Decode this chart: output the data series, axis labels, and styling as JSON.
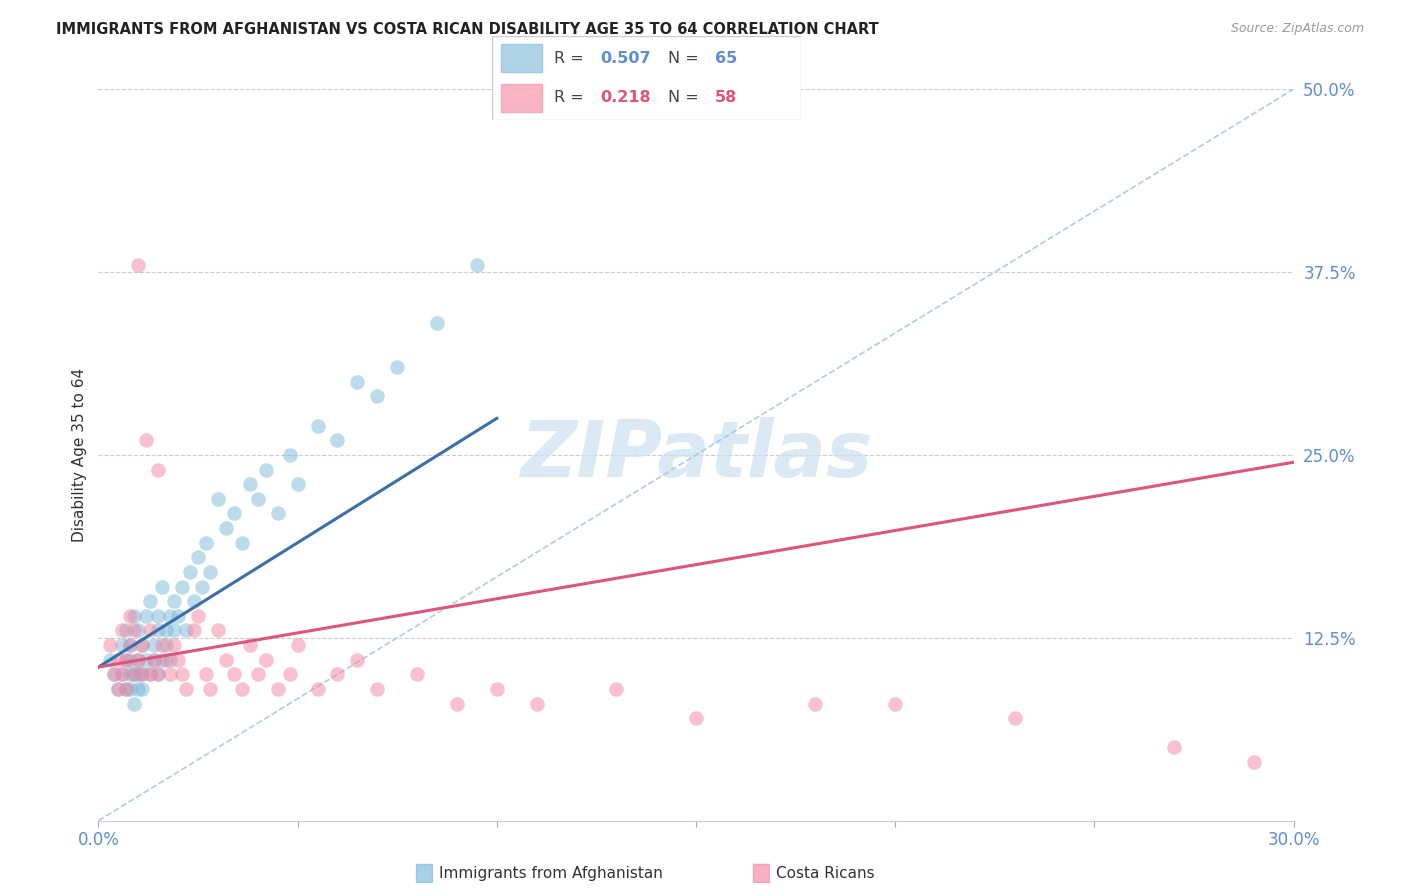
{
  "title": "IMMIGRANTS FROM AFGHANISTAN VS COSTA RICAN DISABILITY AGE 35 TO 64 CORRELATION CHART",
  "source": "Source: ZipAtlas.com",
  "ylabel": "Disability Age 35 to 64",
  "xlim": [
    0.0,
    0.3
  ],
  "ylim": [
    0.0,
    0.5
  ],
  "xticks": [
    0.0,
    0.05,
    0.1,
    0.15,
    0.2,
    0.25,
    0.3
  ],
  "yticks_right": [
    0.0,
    0.125,
    0.25,
    0.375,
    0.5
  ],
  "ytick_labels_right": [
    "",
    "12.5%",
    "25.0%",
    "37.5%",
    "50.0%"
  ],
  "blue_color": "#7ab8d9",
  "pink_color": "#f585a0",
  "blue_line_color": "#3a6fac",
  "pink_line_color": "#e05577",
  "axis_label_color": "#5b8dd9",
  "watermark_color": "#cce0f0",
  "blue_scatter_x": [
    0.003,
    0.004,
    0.005,
    0.006,
    0.006,
    0.007,
    0.007,
    0.007,
    0.008,
    0.008,
    0.008,
    0.008,
    0.009,
    0.009,
    0.009,
    0.01,
    0.01,
    0.01,
    0.01,
    0.011,
    0.011,
    0.011,
    0.012,
    0.012,
    0.013,
    0.013,
    0.014,
    0.014,
    0.015,
    0.015,
    0.015,
    0.016,
    0.016,
    0.017,
    0.017,
    0.018,
    0.018,
    0.019,
    0.019,
    0.02,
    0.021,
    0.022,
    0.023,
    0.024,
    0.025,
    0.026,
    0.027,
    0.028,
    0.03,
    0.032,
    0.034,
    0.036,
    0.038,
    0.04,
    0.042,
    0.045,
    0.048,
    0.05,
    0.055,
    0.06,
    0.065,
    0.07,
    0.075,
    0.085,
    0.095
  ],
  "blue_scatter_y": [
    0.11,
    0.1,
    0.09,
    0.12,
    0.1,
    0.11,
    0.09,
    0.13,
    0.1,
    0.09,
    0.11,
    0.12,
    0.1,
    0.08,
    0.14,
    0.1,
    0.11,
    0.09,
    0.13,
    0.1,
    0.12,
    0.09,
    0.14,
    0.11,
    0.1,
    0.15,
    0.11,
    0.12,
    0.1,
    0.14,
    0.13,
    0.11,
    0.16,
    0.13,
    0.12,
    0.14,
    0.11,
    0.13,
    0.15,
    0.14,
    0.16,
    0.13,
    0.17,
    0.15,
    0.18,
    0.16,
    0.19,
    0.17,
    0.22,
    0.2,
    0.21,
    0.19,
    0.23,
    0.22,
    0.24,
    0.21,
    0.25,
    0.23,
    0.27,
    0.26,
    0.3,
    0.29,
    0.31,
    0.34,
    0.38
  ],
  "pink_scatter_x": [
    0.003,
    0.004,
    0.005,
    0.005,
    0.006,
    0.006,
    0.007,
    0.007,
    0.008,
    0.008,
    0.009,
    0.009,
    0.01,
    0.01,
    0.011,
    0.011,
    0.012,
    0.013,
    0.013,
    0.014,
    0.015,
    0.015,
    0.016,
    0.017,
    0.018,
    0.019,
    0.02,
    0.021,
    0.022,
    0.024,
    0.025,
    0.027,
    0.028,
    0.03,
    0.032,
    0.034,
    0.036,
    0.038,
    0.04,
    0.042,
    0.045,
    0.048,
    0.05,
    0.055,
    0.06,
    0.065,
    0.07,
    0.08,
    0.09,
    0.1,
    0.11,
    0.13,
    0.15,
    0.18,
    0.2,
    0.23,
    0.27,
    0.29
  ],
  "pink_scatter_y": [
    0.12,
    0.1,
    0.11,
    0.09,
    0.13,
    0.1,
    0.11,
    0.09,
    0.12,
    0.14,
    0.1,
    0.13,
    0.38,
    0.11,
    0.1,
    0.12,
    0.26,
    0.1,
    0.13,
    0.11,
    0.24,
    0.1,
    0.12,
    0.11,
    0.1,
    0.12,
    0.11,
    0.1,
    0.09,
    0.13,
    0.14,
    0.1,
    0.09,
    0.13,
    0.11,
    0.1,
    0.09,
    0.12,
    0.1,
    0.11,
    0.09,
    0.1,
    0.12,
    0.09,
    0.1,
    0.11,
    0.09,
    0.1,
    0.08,
    0.09,
    0.08,
    0.09,
    0.07,
    0.08,
    0.08,
    0.07,
    0.05,
    0.04
  ],
  "blue_trend_x": [
    0.0,
    0.1
  ],
  "blue_trend_y": [
    0.105,
    0.275
  ],
  "pink_trend_x": [
    0.0,
    0.3
  ],
  "pink_trend_y": [
    0.105,
    0.245
  ],
  "ref_line_x": [
    0.0,
    0.3
  ],
  "ref_line_y": [
    0.0,
    0.5
  ]
}
